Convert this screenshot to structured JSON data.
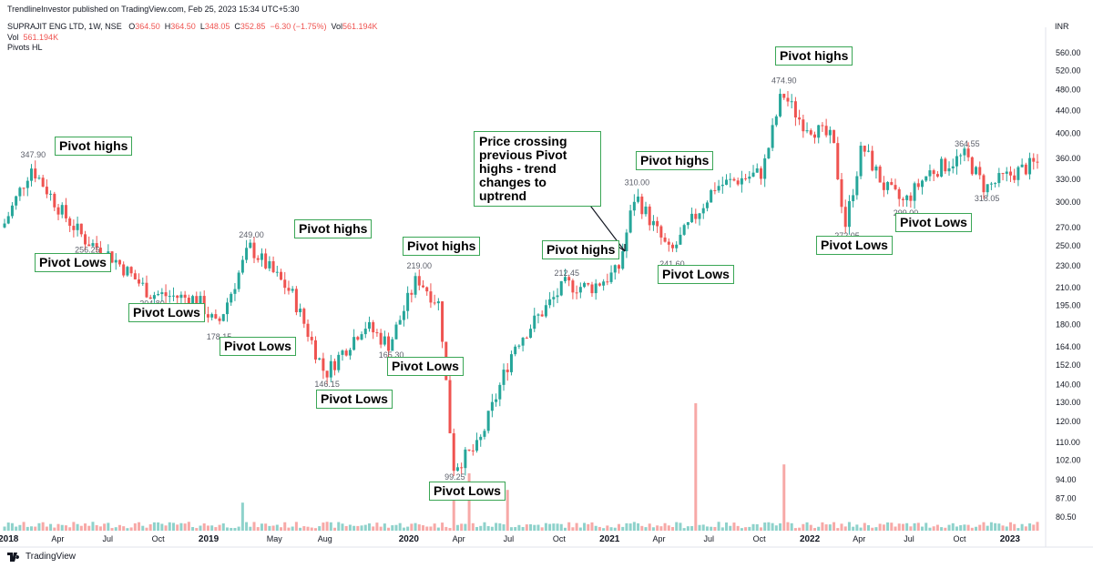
{
  "header": {
    "published": "TrendlineInvestor published on TradingView.com, Feb 25, 2023 15:34 UTC+5:30",
    "symbol": "SUPRAJIT ENG LTD, 1W, NSE",
    "o_label": "O",
    "o_value": "364.50",
    "h_label": "H",
    "h_value": "364.50",
    "l_label": "L",
    "l_value": "348.05",
    "c_label": "C",
    "c_value": "352.85",
    "change": "−6.30 (−1.75%)",
    "vol_label": "Vol",
    "vol_value": "561.194K",
    "vol_row_label": "Vol",
    "vol_row_value": "561.194K",
    "indicator": "Pivots HL"
  },
  "footer": {
    "brand": "TradingView"
  },
  "chart_data": {
    "type": "candlestick",
    "currency": "INR",
    "y_scale": "log",
    "ylim": [
      76,
      600
    ],
    "y_ticks": [
      "560.00",
      "520.00",
      "480.00",
      "440.00",
      "400.00",
      "360.00",
      "330.00",
      "300.00",
      "270.00",
      "250.00",
      "230.00",
      "210.00",
      "195.00",
      "180.00",
      "164.00",
      "152.00",
      "140.00",
      "130.00",
      "120.00",
      "110.00",
      "102.00",
      "94.00",
      "87.00",
      "80.50"
    ],
    "x_ticks": [
      "2018",
      "Apr",
      "Jul",
      "Oct",
      "2019",
      "May",
      "Aug",
      "2020",
      "Apr",
      "Jul",
      "Oct",
      "2021",
      "Apr",
      "Jul",
      "Oct",
      "2022",
      "Apr",
      "Jul",
      "Oct",
      "2023"
    ],
    "x_ticks_bold": [
      "2018",
      "2019",
      "2020",
      "2021",
      "2022",
      "2023"
    ],
    "price_path": [
      [
        "2017-12-25",
        270
      ],
      [
        "2018-02-15",
        347.9
      ],
      [
        "2018-04-15",
        285
      ],
      [
        "2018-05-25",
        256.25
      ],
      [
        "2018-07-10",
        240
      ],
      [
        "2018-09-20",
        204.8
      ],
      [
        "2018-12-15",
        200
      ],
      [
        "2019-01-20",
        178.15
      ],
      [
        "2019-03-20",
        249
      ],
      [
        "2019-06-05",
        205
      ],
      [
        "2019-08-05",
        146.15
      ],
      [
        "2019-10-15",
        180
      ],
      [
        "2019-11-30",
        165.3
      ],
      [
        "2020-01-20",
        219
      ],
      [
        "2020-03-01",
        195
      ],
      [
        "2020-03-25",
        99.25
      ],
      [
        "2020-05-10",
        108
      ],
      [
        "2020-07-15",
        165
      ],
      [
        "2020-10-15",
        212.45
      ],
      [
        "2020-12-01",
        210
      ],
      [
        "2021-01-20",
        225
      ],
      [
        "2021-02-20",
        310
      ],
      [
        "2021-04-25",
        241.6
      ],
      [
        "2021-07-15",
        320
      ],
      [
        "2021-10-10",
        340
      ],
      [
        "2021-11-15",
        474.9
      ],
      [
        "2021-12-20",
        420
      ],
      [
        "2022-02-15",
        390
      ],
      [
        "2022-03-10",
        272.05
      ],
      [
        "2022-04-10",
        380
      ],
      [
        "2022-05-20",
        320
      ],
      [
        "2022-06-25",
        299
      ],
      [
        "2022-08-10",
        340
      ],
      [
        "2022-10-15",
        364.55
      ],
      [
        "2022-11-20",
        318.05
      ],
      [
        "2023-01-01",
        335
      ],
      [
        "2023-02-20",
        352.85
      ]
    ],
    "volume_spikes": [
      [
        "2019-03-05",
        0.22
      ],
      [
        "2020-03-25",
        0.28
      ],
      [
        "2020-04-20",
        0.45
      ],
      [
        "2021-06-05",
        1.0
      ],
      [
        "2021-11-15",
        0.52
      ],
      [
        "2020-07-01",
        0.32
      ]
    ],
    "pivot_values": [
      {
        "label": "347.90",
        "date": "2018-02-15",
        "price": 347.9,
        "pos": "above"
      },
      {
        "label": "256.25",
        "date": "2018-05-25",
        "price": 256.25,
        "pos": "below"
      },
      {
        "label": "204.80",
        "date": "2018-09-20",
        "price": 204.8,
        "pos": "below"
      },
      {
        "label": "178.15",
        "date": "2019-01-20",
        "price": 178.15,
        "pos": "below"
      },
      {
        "label": "249.00",
        "date": "2019-03-20",
        "price": 249,
        "pos": "above"
      },
      {
        "label": "146.15",
        "date": "2019-08-05",
        "price": 146.15,
        "pos": "below"
      },
      {
        "label": "165.30",
        "date": "2019-11-30",
        "price": 165.3,
        "pos": "below"
      },
      {
        "label": "219.00",
        "date": "2020-01-20",
        "price": 219,
        "pos": "above"
      },
      {
        "label": "99.25",
        "date": "2020-03-25",
        "price": 99.25,
        "pos": "below"
      },
      {
        "label": "212.45",
        "date": "2020-10-15",
        "price": 212.45,
        "pos": "above"
      },
      {
        "label": "310.00",
        "date": "2021-02-20",
        "price": 310,
        "pos": "above"
      },
      {
        "label": "241.60",
        "date": "2021-04-25",
        "price": 241.6,
        "pos": "below"
      },
      {
        "label": "474.90",
        "date": "2021-11-15",
        "price": 474.9,
        "pos": "above"
      },
      {
        "label": "272.05",
        "date": "2022-03-10",
        "price": 272.05,
        "pos": "below"
      },
      {
        "label": "299.00",
        "date": "2022-06-25",
        "price": 299,
        "pos": "below"
      },
      {
        "label": "364.55",
        "date": "2022-10-15",
        "price": 364.55,
        "pos": "above"
      },
      {
        "label": "318.05",
        "date": "2022-11-20",
        "price": 318.05,
        "pos": "below"
      }
    ],
    "annotations": [
      "Pivot highs",
      "Pivot Lows",
      "Pivot Lows",
      "Pivot Lows",
      "Pivot highs",
      "Pivot Lows",
      "Pivot Lows",
      "Pivot highs",
      "Pivot Lows",
      "Pivot highs",
      "Pivot highs",
      "Pivot Lows",
      "Pivot highs",
      "Pivot Lows",
      "Pivot Lows"
    ],
    "trend_note": "Price crossing previous Pivot highs - trend changes to uptrend",
    "colors": {
      "up": "#26a69a",
      "down": "#ef5350",
      "vol_up": "#8ed2cb",
      "vol_down": "#f7a9a7",
      "annotation_border": "#3aa655"
    }
  }
}
